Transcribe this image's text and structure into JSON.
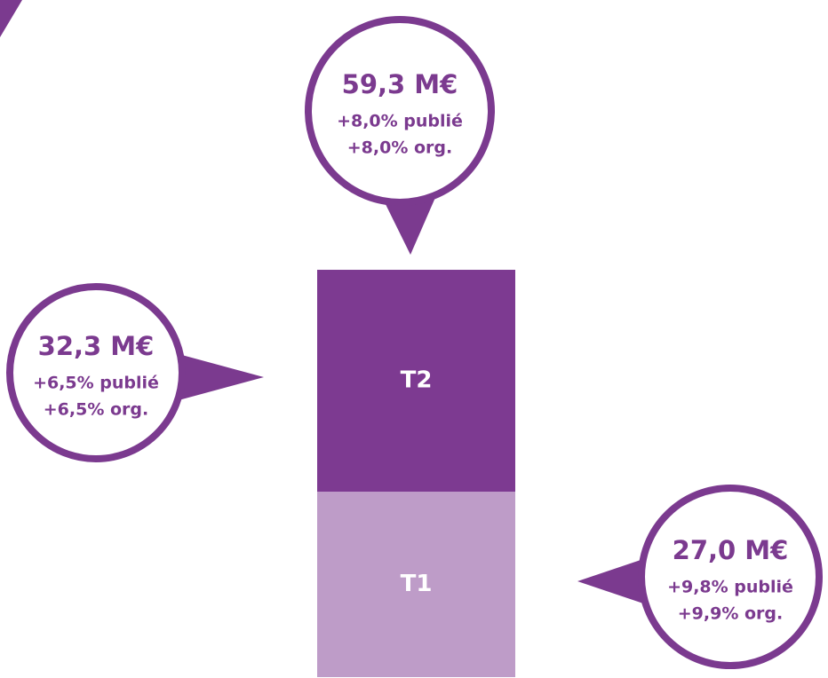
{
  "chart_data": {
    "type": "bar",
    "stacked": true,
    "series": [
      {
        "name": "T1",
        "color": "#be9cc8",
        "values": [
          27.0
        ],
        "value_labels": [
          "27,0 M€"
        ],
        "notes": [
          "+9,8% publié",
          "+9,9% org."
        ]
      },
      {
        "name": "T2",
        "color": "#7d3a91",
        "values": [
          32.3
        ],
        "value_labels": [
          "32,3 M€"
        ],
        "notes": [
          "+6,5% publié",
          "+6,5% org."
        ]
      }
    ],
    "total": {
      "value": 59.3,
      "label": "59,3 M€",
      "notes": [
        "+8,0% publié",
        "+8,0% org."
      ]
    }
  }
}
